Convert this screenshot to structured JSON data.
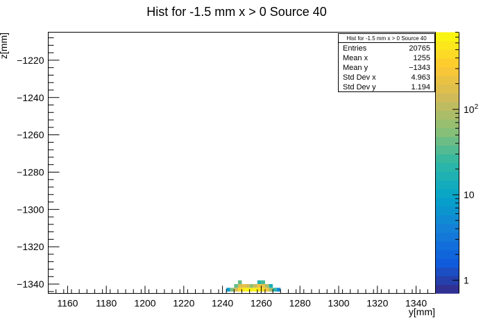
{
  "chart_data": {
    "type": "heatmap",
    "title": "Hist for -1.5 mm x > 0 Source 40",
    "xlabel": "y[mm]",
    "ylabel": "z[mm]",
    "xlim": [
      1150,
      1350
    ],
    "ylim": [
      -1345,
      -1205
    ],
    "x_ticks": [
      1160,
      1180,
      1200,
      1220,
      1240,
      1260,
      1280,
      1300,
      1320,
      1340
    ],
    "y_ticks": [
      -1220,
      -1240,
      -1260,
      -1280,
      -1300,
      -1320,
      -1340
    ],
    "x_tick_labels": [
      "1160",
      "1180",
      "1200",
      "1220",
      "1240",
      "1260",
      "1280",
      "1300",
      "1320",
      "1340"
    ],
    "y_tick_labels": [
      "−1220",
      "−1240",
      "−1260",
      "−1280",
      "−1300",
      "−1320",
      "−1340"
    ],
    "colorbar": {
      "scale": "log",
      "range": [
        0.7,
        800
      ],
      "ticks": [
        1,
        10,
        100
      ],
      "tick_labels": {
        "1": "1",
        "10": "10",
        "100": "10"
      },
      "tick_superscripts": {
        "1": "",
        "10": "",
        "100": "2"
      }
    },
    "bin_width": 2,
    "bin_height": 2,
    "cells": [
      {
        "x": 1248,
        "y": -1340,
        "count": 40
      },
      {
        "x": 1258,
        "y": -1340,
        "count": 20
      },
      {
        "x": 1260,
        "y": -1340,
        "count": 30
      },
      {
        "x": 1246,
        "y": -1342,
        "count": 40
      },
      {
        "x": 1248,
        "y": -1342,
        "count": 150
      },
      {
        "x": 1250,
        "y": -1342,
        "count": 200
      },
      {
        "x": 1252,
        "y": -1342,
        "count": 150
      },
      {
        "x": 1254,
        "y": -1342,
        "count": 60
      },
      {
        "x": 1256,
        "y": -1342,
        "count": 120
      },
      {
        "x": 1258,
        "y": -1342,
        "count": 250
      },
      {
        "x": 1260,
        "y": -1342,
        "count": 200
      },
      {
        "x": 1262,
        "y": -1342,
        "count": 90
      },
      {
        "x": 1264,
        "y": -1342,
        "count": 15
      },
      {
        "x": 1242,
        "y": -1344,
        "count": 8
      },
      {
        "x": 1244,
        "y": -1344,
        "count": 50
      },
      {
        "x": 1246,
        "y": -1344,
        "count": 150
      },
      {
        "x": 1248,
        "y": -1344,
        "count": 400
      },
      {
        "x": 1250,
        "y": -1344,
        "count": 600
      },
      {
        "x": 1252,
        "y": -1344,
        "count": 700
      },
      {
        "x": 1254,
        "y": -1344,
        "count": 650
      },
      {
        "x": 1256,
        "y": -1344,
        "count": 700
      },
      {
        "x": 1258,
        "y": -1344,
        "count": 600
      },
      {
        "x": 1260,
        "y": -1344,
        "count": 450
      },
      {
        "x": 1262,
        "y": -1344,
        "count": 250
      },
      {
        "x": 1264,
        "y": -1344,
        "count": 80
      },
      {
        "x": 1266,
        "y": -1344,
        "count": 20
      },
      {
        "x": 1268,
        "y": -1344,
        "count": 5
      }
    ],
    "stats": {
      "title": "Hist for -1.5 mm x > 0 Source 40",
      "rows": [
        {
          "label": "Entries",
          "value": "20765"
        },
        {
          "label": "Mean x",
          "value": "1255"
        },
        {
          "label": "Mean y",
          "value": "−1343"
        },
        {
          "label": "Std Dev x",
          "value": "4.963"
        },
        {
          "label": "Std Dev y",
          "value": "1.194"
        }
      ]
    }
  }
}
